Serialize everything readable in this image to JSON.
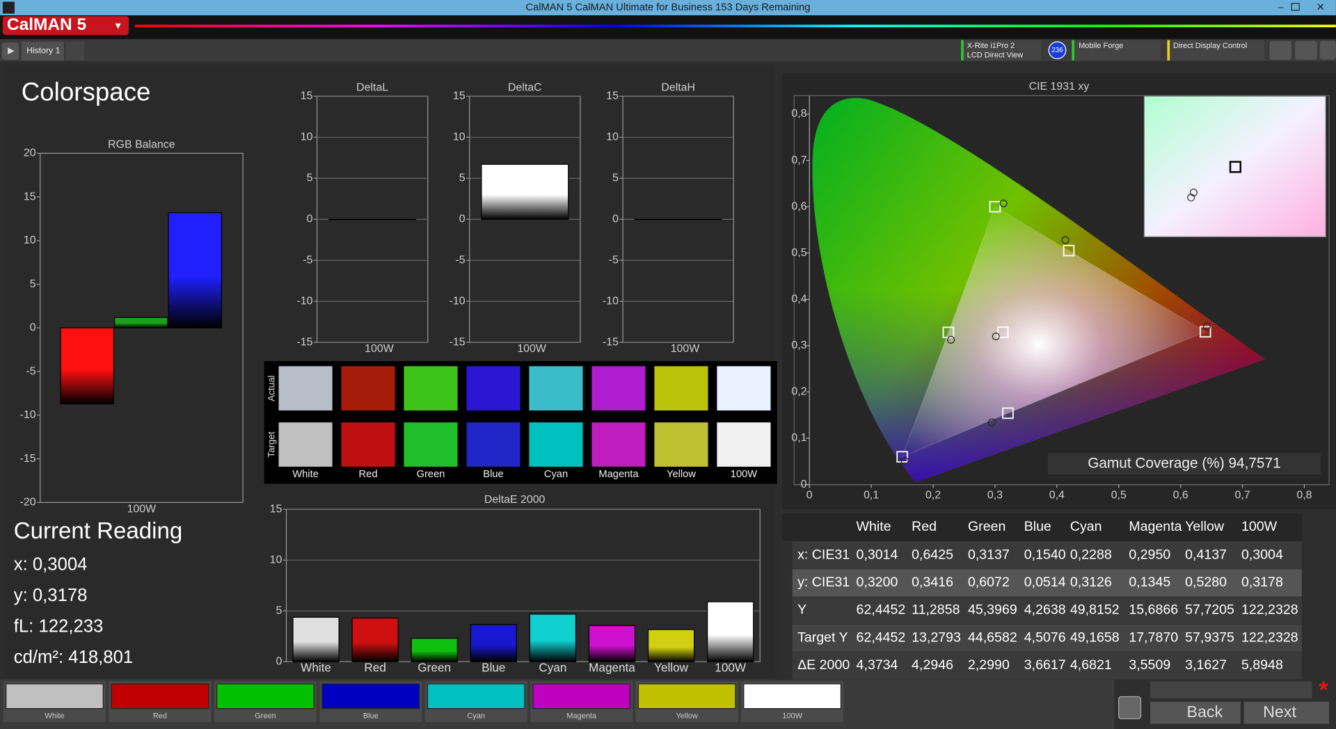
{
  "window": {
    "title": "CalMAN 5 CalMAN Ultimate for Business 153 Days Remaining",
    "logo": "CalMAN 5"
  },
  "toolbar": {
    "tab": "History 1",
    "meter": [
      "X-Rite i1Pro 2",
      "LCD Direct View"
    ],
    "meter_badge": "236",
    "source": "Mobile Forge",
    "display": "Direct Display Control"
  },
  "page_title": "Colorspace",
  "rgb_balance": {
    "type": "bar",
    "title": "RGB Balance",
    "categories": [
      "100W"
    ],
    "series": [
      {
        "color": "#ff1010",
        "values": [
          -8.7
        ]
      },
      {
        "color": "#1aa01a",
        "values": [
          1.2
        ]
      },
      {
        "color": "#2020ff",
        "values": [
          13.2
        ]
      }
    ],
    "ylim": [
      -20,
      20
    ],
    "yticks": [
      20,
      15,
      10,
      5,
      0,
      -5,
      -10,
      -15,
      -20
    ],
    "grid": false
  },
  "delta_charts": [
    {
      "type": "bar",
      "title": "DeltaL",
      "categories": [
        "100W"
      ],
      "values": [
        0
      ],
      "color": "#ffffff",
      "ylim": [
        -15,
        15
      ],
      "yticks": [
        15,
        10,
        5,
        0,
        -5,
        -10,
        -15
      ],
      "grid": true
    },
    {
      "type": "bar",
      "title": "DeltaC",
      "categories": [
        "100W"
      ],
      "values": [
        6.7
      ],
      "color": "#ffffff",
      "ylim": [
        -15,
        15
      ],
      "yticks": [
        15,
        10,
        5,
        0,
        -5,
        -10,
        -15
      ],
      "grid": true
    },
    {
      "type": "bar",
      "title": "DeltaH",
      "categories": [
        "100W"
      ],
      "values": [
        0
      ],
      "color": "#ffffff",
      "ylim": [
        -15,
        15
      ],
      "yticks": [
        15,
        10,
        5,
        0,
        -5,
        -10,
        -15
      ],
      "grid": true
    }
  ],
  "swatches": {
    "rows": [
      "Actual",
      "Target"
    ],
    "labels": [
      "White",
      "Red",
      "Green",
      "Blue",
      "Cyan",
      "Magenta",
      "Yellow",
      "100W"
    ],
    "actual_colors": [
      "#b8bec8",
      "#a51c08",
      "#3ec31a",
      "#2b16d4",
      "#3abdc8",
      "#b01cd0",
      "#bcc10a",
      "#e9f0ff"
    ],
    "target_colors": [
      "#c0c0c0",
      "#c00f10",
      "#1fbf2b",
      "#2126c8",
      "#00c0c0",
      "#c01cc0",
      "#c0c030",
      "#f0f0f0"
    ]
  },
  "delta_e": {
    "type": "bar",
    "title": "DeltaE 2000",
    "categories": [
      "White",
      "Red",
      "Green",
      "Blue",
      "Cyan",
      "Magenta",
      "Yellow",
      "100W"
    ],
    "values": [
      4.3734,
      4.2946,
      2.299,
      3.6617,
      4.6821,
      3.5509,
      3.1627,
      5.8948
    ],
    "colors": [
      "#e0e0e0",
      "#d01010",
      "#10c010",
      "#1818d0",
      "#10d0d0",
      "#d010d0",
      "#d0d010",
      "#ffffff"
    ],
    "ylim": [
      0,
      15
    ],
    "yticks": [
      0,
      5,
      10,
      15
    ],
    "grid": true
  },
  "cie": {
    "type": "scatter",
    "title": "CIE 1931 xy",
    "xlim": [
      0,
      0.84
    ],
    "ylim": [
      0,
      0.84
    ],
    "xticks": [
      0,
      {
        "value": 0.1,
        "label": "0,1"
      },
      {
        "value": 0.2,
        "label": "0,2"
      },
      {
        "value": 0.3,
        "label": "0,3"
      },
      {
        "value": 0.4,
        "label": "0,4"
      },
      {
        "value": 0.5,
        "label": "0,5"
      },
      {
        "value": 0.6,
        "label": "0,6"
      },
      {
        "value": 0.7,
        "label": "0,7"
      },
      {
        "value": 0.8,
        "label": "0,8"
      }
    ],
    "yticks": [
      0,
      {
        "value": 0.1,
        "label": "0,1"
      },
      {
        "value": 0.2,
        "label": "0,2"
      },
      {
        "value": 0.3,
        "label": "0,3"
      },
      {
        "value": 0.4,
        "label": "0,4"
      },
      {
        "value": 0.5,
        "label": "0,5"
      },
      {
        "value": 0.6,
        "label": "0,6"
      },
      {
        "value": 0.7,
        "label": "0,7"
      },
      {
        "value": 0.8,
        "label": "0,8"
      }
    ],
    "targets": {
      "x": [
        0.3127,
        0.64,
        0.3,
        0.15,
        0.2246,
        0.3209,
        0.4193
      ],
      "y": [
        0.329,
        0.33,
        0.6,
        0.06,
        0.3287,
        0.1542,
        0.5053
      ]
    },
    "actuals": {
      "x": [
        0.3014,
        0.6425,
        0.3137,
        0.154,
        0.2288,
        0.295,
        0.4137
      ],
      "y": [
        0.32,
        0.3416,
        0.6072,
        0.0514,
        0.3126,
        0.1345,
        0.528
      ]
    },
    "gamut_coverage": "Gamut Coverage (%) 94,7571"
  },
  "table": {
    "columns": [
      "White",
      "Red",
      "Green",
      "Blue",
      "Cyan",
      "Magenta",
      "Yellow",
      "100W"
    ],
    "rows": [
      {
        "label": "x: CIE31",
        "cells": [
          "0,3014",
          "0,6425",
          "0,3137",
          "0,1540",
          "0,2288",
          "0,2950",
          "0,4137",
          "0,3004"
        ]
      },
      {
        "label": "y: CIE31",
        "cells": [
          "0,3200",
          "0,3416",
          "0,6072",
          "0,0514",
          "0,3126",
          "0,1345",
          "0,5280",
          "0,3178"
        ]
      },
      {
        "label": "Y",
        "cells": [
          "62,4452",
          "11,2858",
          "45,3969",
          "4,2638",
          "49,8152",
          "15,6866",
          "57,7205",
          "122,2328"
        ]
      },
      {
        "label": "Target Y",
        "cells": [
          "62,4452",
          "13,2793",
          "44,6582",
          "4,5076",
          "49,1658",
          "17,7870",
          "57,9375",
          "122,2328"
        ]
      },
      {
        "label": "ΔE 2000",
        "cells": [
          "4,3734",
          "4,2946",
          "2,2990",
          "3,6617",
          "4,6821",
          "3,5509",
          "3,1627",
          "5,8948"
        ]
      }
    ]
  },
  "current_reading": {
    "title": "Current Reading",
    "lines": [
      "x: 0,3004",
      "y: 0,3178",
      "fL: 122,233",
      "cd/m²: 418,801"
    ]
  },
  "bottom_bar": {
    "labels": [
      "White",
      "Red",
      "Green",
      "Blue",
      "Cyan",
      "Magenta",
      "Yellow",
      "100W"
    ],
    "colors": [
      "#c0c0c0",
      "#c00000",
      "#00c000",
      "#0000c0",
      "#00c0c0",
      "#c000c0",
      "#c0c000",
      "#ffffff"
    ],
    "back": "Back",
    "next": "Next"
  }
}
